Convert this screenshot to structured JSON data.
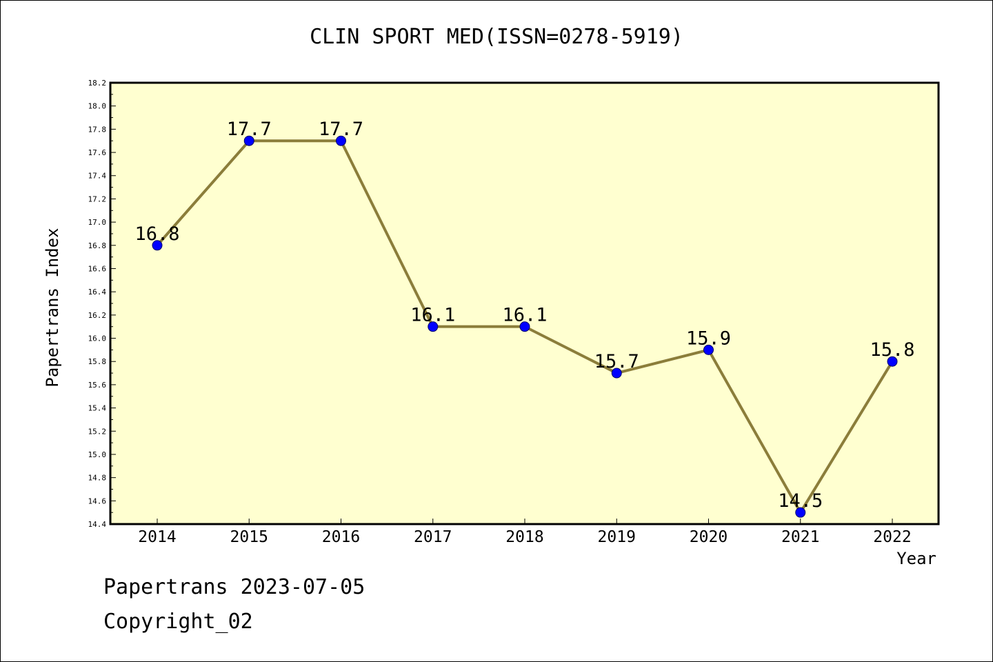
{
  "chart_data": {
    "type": "line",
    "title": "CLIN SPORT MED(ISSN=0278-5919)",
    "xlabel": "Year",
    "ylabel": "Papertrans Index",
    "categories": [
      "2014",
      "2015",
      "2016",
      "2017",
      "2018",
      "2019",
      "2020",
      "2021",
      "2022"
    ],
    "series": [
      {
        "values": [
          16.8,
          17.7,
          17.7,
          16.1,
          16.1,
          15.7,
          15.9,
          14.5,
          15.8
        ],
        "labels": [
          "16.8",
          "17.7",
          "17.7",
          "16.1",
          "16.1",
          "15.7",
          "15.9",
          "14.5",
          "15.8"
        ]
      }
    ],
    "ylim": [
      14.4,
      18.2
    ],
    "yticks": [
      "14.4",
      "14.6",
      "14.8",
      "15.0",
      "15.2",
      "15.4",
      "15.6",
      "15.8",
      "16.0",
      "16.2",
      "16.4",
      "16.6",
      "16.8",
      "17.0",
      "17.2",
      "17.4",
      "17.6",
      "17.8",
      "18.0",
      "18.2"
    ],
    "grid": false,
    "colors": {
      "plot_background": "#ffffd0",
      "line": "#8b7d3a",
      "marker": "#0000ff"
    }
  },
  "footer": {
    "date_line": "Papertrans 2023-07-05",
    "copyright_line": "Copyright_02"
  }
}
